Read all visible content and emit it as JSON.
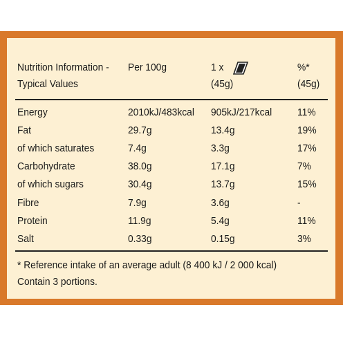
{
  "header": {
    "nutrient": [
      "Nutrition Information -",
      "Typical Values"
    ],
    "per100": "Per 100g",
    "portion": [
      "1 x",
      "(45g)"
    ],
    "percent": [
      "%*",
      "(45g)"
    ]
  },
  "table": {
    "rows": [
      [
        "Energy",
        "2010kJ/483kcal",
        "905kJ/217kcal",
        "11%"
      ],
      [
        "Fat",
        "29.7g",
        "13.4g",
        "19%"
      ],
      [
        "of which saturates",
        "7.4g",
        "3.3g",
        "17%"
      ],
      [
        "Carbohydrate",
        "38.0g",
        "17.1g",
        "7%"
      ],
      [
        "of which sugars",
        "30.4g",
        "13.7g",
        "15%"
      ],
      [
        "Fibre",
        "7.9g",
        "3.6g",
        "-"
      ],
      [
        "Protein",
        "11.9g",
        "5.4g",
        "11%"
      ],
      [
        "Salt",
        "0.33g",
        "0.15g",
        "3%"
      ]
    ]
  },
  "footnotes": [
    "* Reference intake of an average adult (8 400 kJ / 2 000 kcal)",
    "Contain 3 portions."
  ]
}
